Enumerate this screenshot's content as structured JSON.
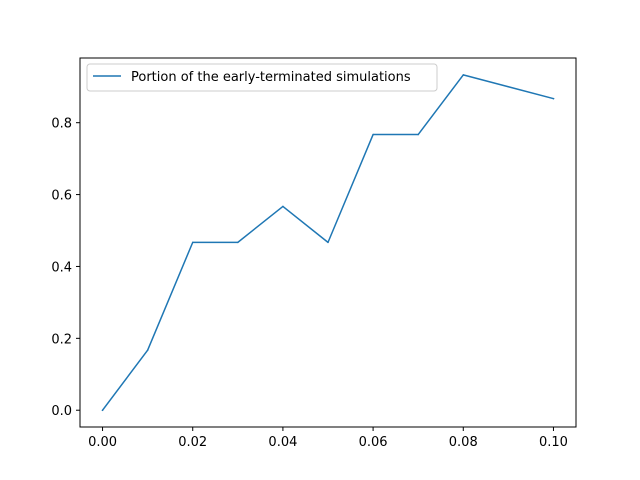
{
  "chart_data": {
    "type": "line",
    "title": "",
    "xlabel": "",
    "ylabel": "",
    "xlim": [
      -0.005,
      0.105
    ],
    "ylim": [
      -0.0467,
      0.98
    ],
    "grid": false,
    "legend_placement": "upper-left",
    "x_ticks": [
      {
        "value": 0.0,
        "label": "0.00"
      },
      {
        "value": 0.02,
        "label": "0.02"
      },
      {
        "value": 0.04,
        "label": "0.04"
      },
      {
        "value": 0.06,
        "label": "0.06"
      },
      {
        "value": 0.08,
        "label": "0.08"
      },
      {
        "value": 0.1,
        "label": "0.10"
      }
    ],
    "y_ticks": [
      {
        "value": 0.0,
        "label": "0.0"
      },
      {
        "value": 0.2,
        "label": "0.2"
      },
      {
        "value": 0.4,
        "label": "0.4"
      },
      {
        "value": 0.6,
        "label": "0.6"
      },
      {
        "value": 0.8,
        "label": "0.8"
      }
    ],
    "series": [
      {
        "name": "Portion of the early-terminated simulations",
        "color": "#1f77b4",
        "x": [
          0.0,
          0.01,
          0.02,
          0.03,
          0.04,
          0.05,
          0.06,
          0.07,
          0.08,
          0.09,
          0.1
        ],
        "y": [
          0.0,
          0.167,
          0.467,
          0.467,
          0.567,
          0.467,
          0.767,
          0.767,
          0.933,
          0.9,
          0.867
        ]
      }
    ]
  }
}
